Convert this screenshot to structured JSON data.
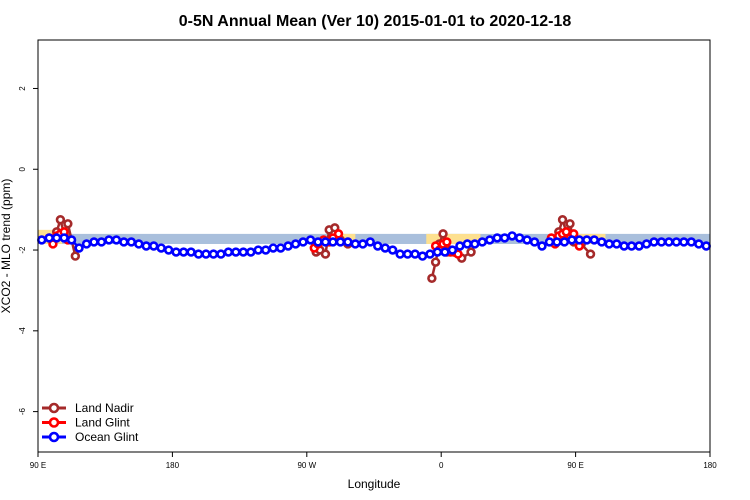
{
  "chart_data": {
    "type": "scatter",
    "title": "0-5N Annual Mean (Ver 10)   2015-01-01 to 2020-12-18",
    "xlabel": "Longitude",
    "ylabel": "XCO2 - MLO trend (ppm)",
    "xlim": [
      90,
      450
    ],
    "ylim": [
      -7,
      3.2
    ],
    "x_ticks": [
      {
        "value": 90,
        "label": "90 E"
      },
      {
        "value": 162,
        "label": "180"
      },
      {
        "value": 234,
        "label": "90 W"
      },
      {
        "value": 306,
        "label": "0"
      },
      {
        "value": 378,
        "label": "90 E"
      },
      {
        "value": 450,
        "label": "180"
      }
    ],
    "y_ticks": [
      {
        "value": 2,
        "label": "2"
      },
      {
        "value": 0,
        "label": "0"
      },
      {
        "value": -2,
        "label": "-2"
      },
      {
        "value": -4,
        "label": "-4"
      },
      {
        "value": -6,
        "label": "-6"
      }
    ],
    "legend_position": "bottom-left",
    "bands": [
      {
        "name": "ocean-band",
        "color": "#a9bfdc",
        "x": [
          90,
          450
        ],
        "y": [
          -1.6,
          -1.85
        ]
      },
      {
        "name": "land-band-1",
        "color": "#fde08f",
        "x": [
          90,
          103
        ],
        "y": [
          -1.5,
          -1.85
        ]
      },
      {
        "name": "land-band-2",
        "color": "#fde08f",
        "x": [
          245,
          260
        ],
        "y": [
          -1.6,
          -1.85
        ]
      },
      {
        "name": "land-band-3",
        "color": "#fde08f",
        "x": [
          298,
          327
        ],
        "y": [
          -1.6,
          -1.85
        ]
      },
      {
        "name": "land-band-4",
        "color": "#fde08f",
        "x": [
          370,
          394
        ],
        "y": [
          -1.6,
          -1.85
        ]
      }
    ],
    "series": [
      {
        "name": "Land Nadir",
        "color": "#a52a2a",
        "x": [
          98,
          100,
          102,
          104,
          106,
          110,
          239,
          241,
          244,
          246,
          249,
          252,
          256,
          301,
          303,
          305,
          307,
          309,
          311,
          313,
          317,
          322,
          367,
          369,
          371,
          373,
          375,
          377,
          381,
          386
        ],
        "y": [
          -1.75,
          -1.55,
          -1.25,
          -1.6,
          -1.35,
          -2.15,
          -2.05,
          -2.0,
          -2.1,
          -1.5,
          -1.45,
          -1.75,
          -1.85,
          -2.7,
          -2.3,
          -1.85,
          -1.6,
          -2.05,
          -2.0,
          -2.05,
          -2.2,
          -2.05,
          -1.75,
          -1.55,
          -1.25,
          -1.55,
          -1.35,
          -1.8,
          -1.85,
          -2.1
        ]
      },
      {
        "name": "Land Glint",
        "color": "#ff0000",
        "x": [
          96,
          98,
          100,
          102,
          104,
          106,
          238,
          240,
          243,
          246,
          248,
          251,
          303,
          305,
          307,
          309,
          311,
          313,
          315,
          365,
          367,
          369,
          371,
          373,
          375,
          377,
          380
        ],
        "y": [
          -1.7,
          -1.85,
          -1.65,
          -1.6,
          -1.55,
          -1.75,
          -1.95,
          -1.85,
          -1.75,
          -1.8,
          -1.7,
          -1.6,
          -1.9,
          -2.0,
          -1.85,
          -1.8,
          -2.05,
          -2.05,
          -2.1,
          -1.7,
          -1.85,
          -1.65,
          -1.6,
          -1.55,
          -1.7,
          -1.6,
          -1.9
        ]
      },
      {
        "name": "Ocean Glint",
        "color": "#0000ff",
        "x": [
          92,
          96,
          100,
          104,
          108,
          112,
          116,
          120,
          124,
          128,
          132,
          136,
          140,
          144,
          148,
          152,
          156,
          160,
          164,
          168,
          172,
          176,
          180,
          184,
          188,
          192,
          196,
          200,
          204,
          208,
          212,
          216,
          220,
          224,
          228,
          232,
          236,
          240,
          244,
          248,
          252,
          256,
          260,
          264,
          268,
          272,
          276,
          280,
          284,
          288,
          292,
          296,
          300,
          304,
          308,
          312,
          316,
          320,
          324,
          328,
          332,
          336,
          340,
          344,
          348,
          352,
          356,
          360,
          364,
          368,
          372,
          376,
          380,
          384,
          388,
          392,
          396,
          400,
          404,
          408,
          412,
          416,
          420,
          424,
          428,
          432,
          436,
          440,
          444,
          448
        ],
        "y": [
          -1.75,
          -1.7,
          -1.7,
          -1.7,
          -1.75,
          -1.95,
          -1.85,
          -1.8,
          -1.8,
          -1.75,
          -1.75,
          -1.8,
          -1.8,
          -1.85,
          -1.9,
          -1.9,
          -1.95,
          -2.0,
          -2.05,
          -2.05,
          -2.05,
          -2.1,
          -2.1,
          -2.1,
          -2.1,
          -2.05,
          -2.05,
          -2.05,
          -2.05,
          -2.0,
          -2.0,
          -1.95,
          -1.95,
          -1.9,
          -1.85,
          -1.8,
          -1.75,
          -1.8,
          -1.8,
          -1.8,
          -1.8,
          -1.8,
          -1.85,
          -1.85,
          -1.8,
          -1.9,
          -1.95,
          -2.0,
          -2.1,
          -2.1,
          -2.1,
          -2.15,
          -2.1,
          -2.05,
          -2.05,
          -2.0,
          -1.9,
          -1.85,
          -1.85,
          -1.8,
          -1.75,
          -1.7,
          -1.7,
          -1.65,
          -1.7,
          -1.75,
          -1.8,
          -1.9,
          -1.8,
          -1.8,
          -1.8,
          -1.75,
          -1.75,
          -1.75,
          -1.75,
          -1.8,
          -1.85,
          -1.85,
          -1.9,
          -1.9,
          -1.9,
          -1.85,
          -1.8,
          -1.8,
          -1.8,
          -1.8,
          -1.8,
          -1.8,
          -1.85,
          -1.9
        ]
      }
    ]
  }
}
